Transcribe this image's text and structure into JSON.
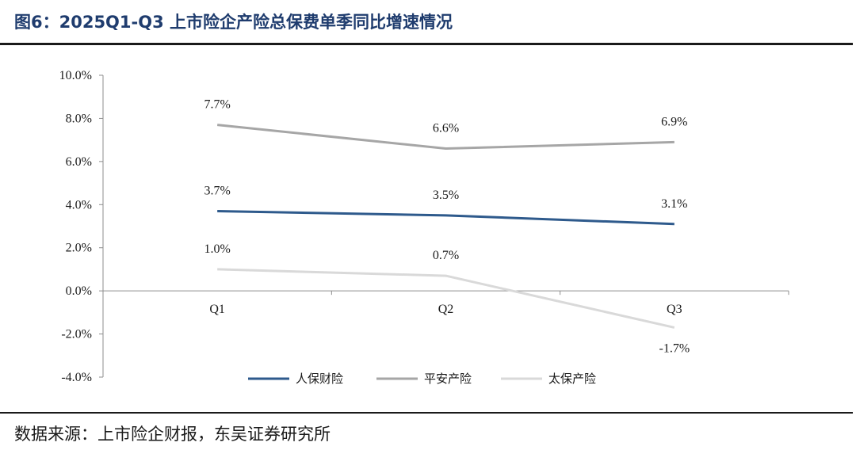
{
  "figure": {
    "title": "图6：2025Q1-Q3 上市险企产险总保费单季同比增速情况",
    "source": "数据来源：上市险企财报，东吴证券研究所"
  },
  "chart_data": {
    "type": "line",
    "categories": [
      "Q1",
      "Q2",
      "Q3"
    ],
    "series": [
      {
        "name": "人保财险",
        "values": [
          3.7,
          3.5,
          3.1
        ],
        "labels": [
          "3.7%",
          "3.5%",
          "3.1%"
        ],
        "color": "#2e5a8c"
      },
      {
        "name": "平安产险",
        "values": [
          7.7,
          6.6,
          6.9
        ],
        "labels": [
          "7.7%",
          "6.6%",
          "6.9%"
        ],
        "color": "#a6a6a6"
      },
      {
        "name": "太保产险",
        "values": [
          1.0,
          0.7,
          -1.7
        ],
        "labels": [
          "1.0%",
          "0.7%",
          "-1.7%"
        ],
        "color": "#d9d9d9"
      }
    ],
    "ylim": [
      -4,
      10
    ],
    "yticks": [
      10,
      8,
      6,
      4,
      2,
      0,
      -2,
      -4
    ],
    "ytick_labels": [
      "10.0%",
      "8.0%",
      "6.0%",
      "4.0%",
      "2.0%",
      "0.0%",
      "-2.0%",
      "-4.0%"
    ],
    "xlabel": "",
    "ylabel": "",
    "grid": false,
    "legend_position": "bottom"
  }
}
